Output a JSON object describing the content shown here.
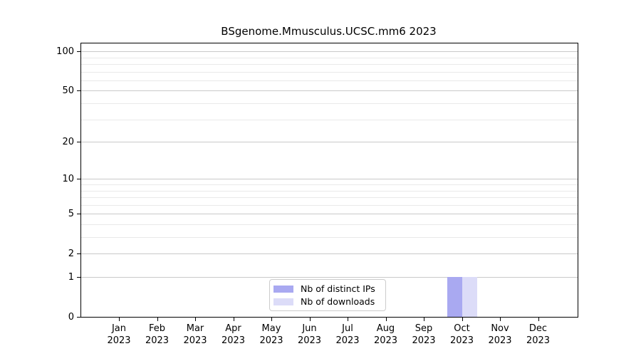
{
  "chart_data": {
    "type": "bar",
    "title": "BSgenome.Mmusculus.UCSC.mm6 2023",
    "x_tick_month_labels": [
      "Jan",
      "Feb",
      "Mar",
      "Apr",
      "May",
      "Jun",
      "Jul",
      "Aug",
      "Sep",
      "Oct",
      "Nov",
      "Dec"
    ],
    "x_tick_year_label": "2023",
    "series": [
      {
        "name": "Nb of distinct IPs",
        "color": "#a9a9f1",
        "values": [
          0,
          0,
          0,
          0,
          0,
          0,
          0,
          0,
          0,
          1,
          0,
          0
        ]
      },
      {
        "name": "Nb of downloads",
        "color": "#dcdcf8",
        "values": [
          0,
          0,
          0,
          0,
          0,
          0,
          0,
          0,
          0,
          1,
          0,
          0
        ]
      }
    ],
    "y_scale": "log1p",
    "ylim": [
      0,
      115
    ],
    "y_major_ticks": [
      0,
      1,
      2,
      5,
      10,
      20,
      50,
      100
    ],
    "y_minor_gridlines": [
      3,
      4,
      6,
      7,
      8,
      9,
      30,
      40,
      60,
      70,
      80,
      90
    ],
    "grid": true,
    "legend_position": "bottom-center",
    "colors": {
      "axis": "#000000",
      "grid_major": "#c9c9c9",
      "grid_minor": "#e9e9e9",
      "background": "#ffffff",
      "legend_border": "#cccccc"
    }
  }
}
